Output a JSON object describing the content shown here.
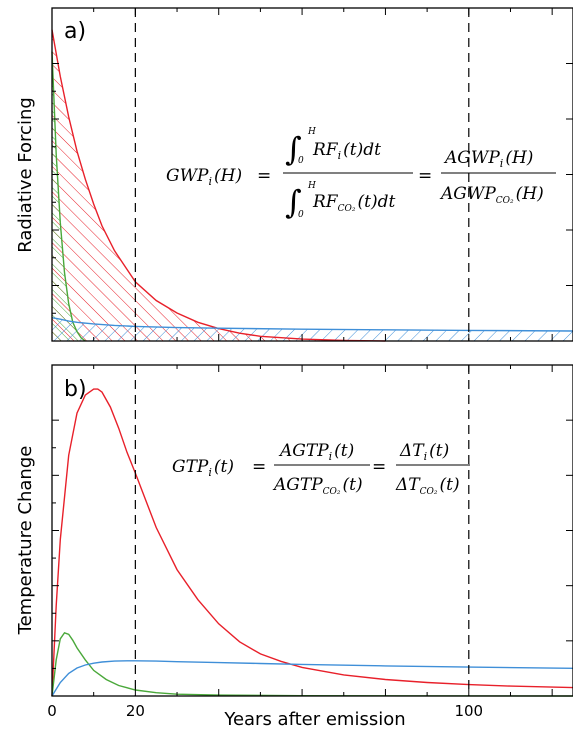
{
  "chart_data": [
    {
      "type": "area",
      "panel_label": "a)",
      "ylabel": "Radiative Forcing",
      "xlim": [
        0,
        125
      ],
      "vlines": [
        20,
        100
      ],
      "grid": false,
      "series": [
        {
          "color": "#e8202a",
          "x": [
            0,
            2,
            4,
            6,
            8,
            10,
            12,
            15,
            18,
            20,
            25,
            30,
            35,
            40,
            45,
            50,
            60,
            70,
            80
          ],
          "y": [
            1.0,
            0.85,
            0.72,
            0.61,
            0.52,
            0.44,
            0.37,
            0.29,
            0.23,
            0.19,
            0.13,
            0.09,
            0.06,
            0.04,
            0.025,
            0.015,
            0.006,
            0.002,
            0.0
          ]
        },
        {
          "color": "#4aa83a",
          "x": [
            0,
            1,
            2,
            3,
            4,
            5,
            6,
            7,
            8
          ],
          "y": [
            0.93,
            0.6,
            0.38,
            0.22,
            0.12,
            0.06,
            0.03,
            0.01,
            0.0
          ]
        },
        {
          "color": "#3f8fd8",
          "x": [
            0,
            2,
            4,
            6,
            10,
            15,
            20,
            30,
            40,
            60,
            80,
            100,
            125
          ],
          "y": [
            0.075,
            0.07,
            0.064,
            0.06,
            0.055,
            0.05,
            0.047,
            0.043,
            0.041,
            0.038,
            0.036,
            0.034,
            0.032
          ]
        }
      ],
      "formula": {
        "left": "GWP",
        "left_sub": "i",
        "left_arg": "(H)",
        "eq": "=",
        "int_lower": "0",
        "int_upper": "H",
        "num_body": "RF",
        "num_sub": "i",
        "num_tail": "(t)dt",
        "den_body": "RF",
        "den_sub": "CO₂",
        "den_tail": "(t)dt",
        "eq2": "=",
        "num2_body": "AGWP",
        "num2_sub": "i",
        "num2_tail": "(H)",
        "den2_body": "AGWP",
        "den2_sub": "CO₂",
        "den2_tail": "(H)"
      }
    },
    {
      "type": "line",
      "panel_label": "b)",
      "ylabel": "Temperature Change",
      "xlabel": "Years after emission",
      "xlim": [
        0,
        125
      ],
      "x_tick_labels": [
        "0",
        "20",
        "100"
      ],
      "x_tick_values": [
        0,
        20,
        100
      ],
      "vlines": [
        20,
        100
      ],
      "grid": false,
      "series": [
        {
          "color": "#e8202a",
          "x": [
            0,
            1,
            2,
            4,
            6,
            8,
            10,
            11,
            12,
            14,
            16,
            18,
            20,
            25,
            30,
            35,
            40,
            45,
            50,
            55,
            60,
            70,
            80,
            90,
            100,
            110,
            125
          ],
          "y": [
            0,
            0.3,
            0.52,
            0.8,
            0.94,
            1.0,
            1.02,
            1.02,
            1.01,
            0.96,
            0.89,
            0.81,
            0.74,
            0.56,
            0.42,
            0.32,
            0.24,
            0.18,
            0.14,
            0.115,
            0.095,
            0.07,
            0.055,
            0.045,
            0.038,
            0.033,
            0.028
          ]
        },
        {
          "color": "#4aa83a",
          "x": [
            0,
            1,
            2,
            3,
            4,
            5,
            6,
            8,
            10,
            13,
            16,
            20,
            25,
            30,
            40,
            60,
            125
          ],
          "y": [
            0,
            0.12,
            0.19,
            0.21,
            0.205,
            0.185,
            0.16,
            0.12,
            0.085,
            0.055,
            0.035,
            0.02,
            0.011,
            0.006,
            0.003,
            0.001,
            0.0
          ]
        },
        {
          "color": "#3f8fd8",
          "x": [
            0,
            2,
            4,
            6,
            8,
            10,
            12,
            15,
            18,
            20,
            25,
            30,
            40,
            50,
            60,
            80,
            100,
            125
          ],
          "y": [
            0,
            0.045,
            0.075,
            0.093,
            0.103,
            0.109,
            0.113,
            0.116,
            0.117,
            0.117,
            0.116,
            0.114,
            0.111,
            0.108,
            0.105,
            0.1,
            0.096,
            0.092
          ]
        }
      ],
      "formula": {
        "left": "GTP",
        "left_sub": "i",
        "left_arg": "(t)",
        "eq": "=",
        "num_body": "AGTP",
        "num_sub": "i",
        "num_tail": "(t)",
        "den_body": "AGTP",
        "den_sub": "CO₂",
        "den_tail": "(t)",
        "eq2": "=",
        "num2_body": "ΔT",
        "num2_sub": "i",
        "num2_tail": "(t)",
        "den2_body": "ΔT",
        "den2_sub": "CO₂",
        "den2_tail": "(t)"
      }
    }
  ],
  "colors": {
    "red": "#e8202a",
    "green": "#4aa83a",
    "blue": "#3f8fd8",
    "axis": "#000000"
  }
}
